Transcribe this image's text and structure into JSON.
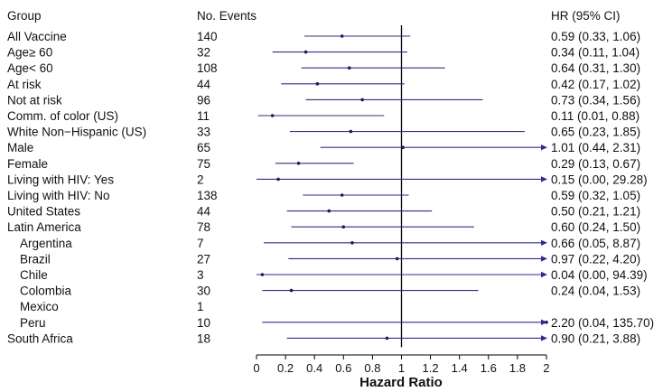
{
  "chart_data": {
    "type": "forest",
    "headers": {
      "group": "Group",
      "events": "No. Events",
      "hr": "HR (95% CI)"
    },
    "xlabel": "Hazard Ratio",
    "xlim": [
      0,
      2
    ],
    "xticks": [
      "0",
      "0.2",
      "0.4",
      "0.6",
      "0.8",
      "1",
      "1.2",
      "1.4",
      "1.6",
      "1.8",
      "2"
    ],
    "reference_line": 1,
    "colors": {
      "ci_line": "#2e2e8a",
      "point": "#1a1a5e",
      "reference": "#000000",
      "text": "#111111"
    },
    "rows": [
      {
        "group": "All Vaccine",
        "indent": false,
        "events": "140",
        "hr": 0.59,
        "lo": 0.33,
        "hi": 1.06,
        "hr_text": "0.59 (0.33, 1.06)",
        "arrow": false
      },
      {
        "group": "Age≥ 60",
        "indent": false,
        "events": "32",
        "hr": 0.34,
        "lo": 0.11,
        "hi": 1.04,
        "hr_text": "0.34 (0.11, 1.04)",
        "arrow": false
      },
      {
        "group": "Age< 60",
        "indent": false,
        "events": "108",
        "hr": 0.64,
        "lo": 0.31,
        "hi": 1.3,
        "hr_text": "0.64 (0.31, 1.30)",
        "arrow": false
      },
      {
        "group": "At risk",
        "indent": false,
        "events": "44",
        "hr": 0.42,
        "lo": 0.17,
        "hi": 1.02,
        "hr_text": "0.42 (0.17, 1.02)",
        "arrow": false
      },
      {
        "group": "Not at risk",
        "indent": false,
        "events": "96",
        "hr": 0.73,
        "lo": 0.34,
        "hi": 1.56,
        "hr_text": "0.73 (0.34, 1.56)",
        "arrow": false
      },
      {
        "group": "Comm. of color (US)",
        "indent": false,
        "events": "11",
        "hr": 0.11,
        "lo": 0.01,
        "hi": 0.88,
        "hr_text": "0.11 (0.01, 0.88)",
        "arrow": false
      },
      {
        "group": "White Non−Hispanic (US)",
        "indent": false,
        "events": "33",
        "hr": 0.65,
        "lo": 0.23,
        "hi": 1.85,
        "hr_text": "0.65 (0.23, 1.85)",
        "arrow": false
      },
      {
        "group": "Male",
        "indent": false,
        "events": "65",
        "hr": 1.01,
        "lo": 0.44,
        "hi": 2.31,
        "hr_text": "1.01 (0.44, 2.31)",
        "arrow": true
      },
      {
        "group": "Female",
        "indent": false,
        "events": "75",
        "hr": 0.29,
        "lo": 0.13,
        "hi": 0.67,
        "hr_text": "0.29 (0.13, 0.67)",
        "arrow": false
      },
      {
        "group": "Living with HIV: Yes",
        "indent": false,
        "events": "2",
        "hr": 0.15,
        "lo": 0.0,
        "hi": 29.28,
        "hr_text": "0.15 (0.00, 29.28)",
        "arrow": true
      },
      {
        "group": "Living with HIV:  No",
        "indent": false,
        "events": "138",
        "hr": 0.59,
        "lo": 0.32,
        "hi": 1.05,
        "hr_text": "0.59 (0.32, 1.05)",
        "arrow": false
      },
      {
        "group": "United States",
        "indent": false,
        "events": "44",
        "hr": 0.5,
        "lo": 0.21,
        "hi": 1.21,
        "hr_text": "0.50 (0.21, 1.21)",
        "arrow": false
      },
      {
        "group": "Latin America",
        "indent": false,
        "events": "78",
        "hr": 0.6,
        "lo": 0.24,
        "hi": 1.5,
        "hr_text": "0.60 (0.24, 1.50)",
        "arrow": false
      },
      {
        "group": "Argentina",
        "indent": true,
        "events": "7",
        "hr": 0.66,
        "lo": 0.05,
        "hi": 8.87,
        "hr_text": "0.66 (0.05, 8.87)",
        "arrow": true
      },
      {
        "group": "Brazil",
        "indent": true,
        "events": "27",
        "hr": 0.97,
        "lo": 0.22,
        "hi": 4.2,
        "hr_text": "0.97 (0.22, 4.20)",
        "arrow": true
      },
      {
        "group": "Chile",
        "indent": true,
        "events": "3",
        "hr": 0.04,
        "lo": 0.0,
        "hi": 94.39,
        "hr_text": "0.04 (0.00, 94.39)",
        "arrow": true
      },
      {
        "group": "Colombia",
        "indent": true,
        "events": "30",
        "hr": 0.24,
        "lo": 0.04,
        "hi": 1.53,
        "hr_text": "0.24 (0.04, 1.53)",
        "arrow": false
      },
      {
        "group": "Mexico",
        "indent": true,
        "events": "1",
        "hr": null,
        "lo": null,
        "hi": null,
        "hr_text": "",
        "arrow": false
      },
      {
        "group": "Peru",
        "indent": true,
        "events": "10",
        "hr": 2.2,
        "lo": 0.04,
        "hi": 135.7,
        "hr_text": "2.20 (0.04, 135.70)",
        "arrow": true
      },
      {
        "group": "South Africa",
        "indent": false,
        "events": "18",
        "hr": 0.9,
        "lo": 0.21,
        "hi": 3.88,
        "hr_text": "0.90 (0.21, 3.88)",
        "arrow": true
      }
    ]
  }
}
